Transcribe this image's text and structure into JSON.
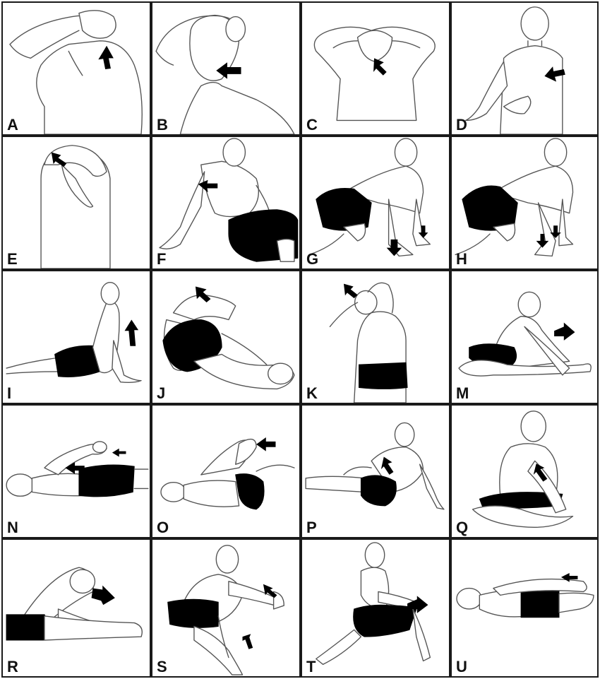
{
  "panels": [
    {
      "label": "A"
    },
    {
      "label": "B"
    },
    {
      "label": "C"
    },
    {
      "label": "D"
    },
    {
      "label": "E"
    },
    {
      "label": "F"
    },
    {
      "label": "G"
    },
    {
      "label": "H"
    },
    {
      "label": "I"
    },
    {
      "label": "J"
    },
    {
      "label": "K"
    },
    {
      "label": "M"
    },
    {
      "label": "N"
    },
    {
      "label": "O"
    },
    {
      "label": "P"
    },
    {
      "label": "Q"
    },
    {
      "label": "R"
    },
    {
      "label": "S"
    },
    {
      "label": "T"
    },
    {
      "label": "U"
    }
  ],
  "colors": {
    "border": "#1a1a1a",
    "outline": "#555555",
    "shorts": "#000000",
    "arrow": "#000000"
  }
}
